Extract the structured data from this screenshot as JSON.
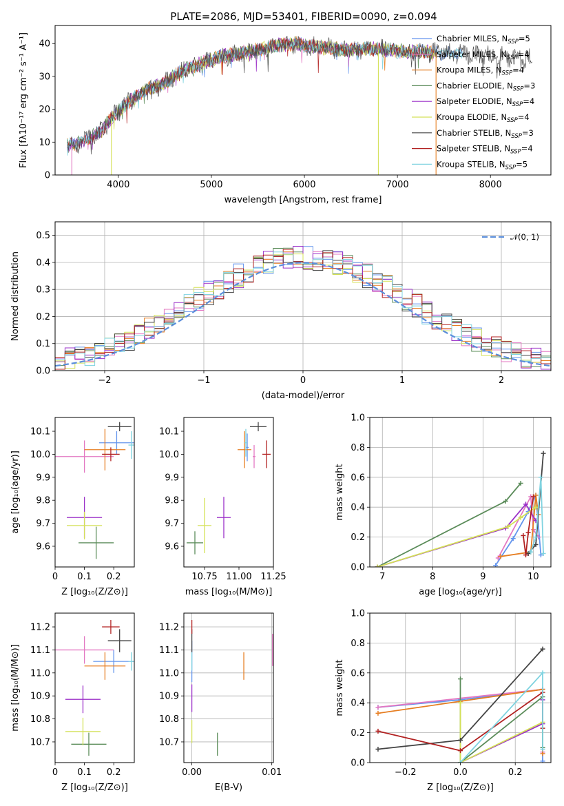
{
  "figure": {
    "title": "PLATE=2086, MJD=53401, FIBERID=0090, z=0.094"
  },
  "legend_spectrum": [
    {
      "label": "Chabrier MILES, N",
      "sub": "SSP",
      "suffix": "=5",
      "color": "#6495ED"
    },
    {
      "label": "Salpeter MILES, N",
      "sub": "SSP",
      "suffix": "=4",
      "color": "#E377C2"
    },
    {
      "label": "Kroupa MILES, N",
      "sub": "SSP",
      "suffix": "=4",
      "color": "#E67E22"
    },
    {
      "label": "Chabrier ELODIE, N",
      "sub": "SSP",
      "suffix": "=3",
      "color": "#5B8C5A"
    },
    {
      "label": "Salpeter ELODIE, N",
      "sub": "SSP",
      "suffix": "=4",
      "color": "#9B30C8"
    },
    {
      "label": "Kroupa ELODIE, N",
      "sub": "SSP",
      "suffix": "=4",
      "color": "#D4E157"
    },
    {
      "label": "Chabrier STELIB, N",
      "sub": "SSP",
      "suffix": "=3",
      "color": "#444444"
    },
    {
      "label": "Salpeter STELIB, N",
      "sub": "SSP",
      "suffix": "=4",
      "color": "#B22222"
    },
    {
      "label": "Kroupa STELIB, N",
      "sub": "SSP",
      "suffix": "=5",
      "color": "#7FD3E0"
    }
  ],
  "chart_data": [
    {
      "id": "spectrum",
      "type": "line",
      "title": "PLATE=2086, MJD=53401, FIBERID=0090, z=0.094",
      "xlabel": "wavelength [Angstrom, rest frame]",
      "ylabel": "Flux [fλ10⁻¹⁷ erg cm⁻² s⁻¹ A⁻¹]",
      "xlim": [
        3320,
        8650
      ],
      "ylim": [
        0,
        45.5
      ],
      "xticks": [
        4000,
        5000,
        6000,
        7000,
        8000
      ],
      "yticks": [
        0,
        10,
        20,
        30,
        40
      ],
      "grid": false,
      "legend": "top-right",
      "continuum": {
        "x": [
          3450,
          3600,
          3800,
          3950,
          4100,
          4300,
          4500,
          4700,
          4900,
          5100,
          5300,
          5500,
          5700,
          5900,
          6100,
          6300,
          6500,
          6700,
          6900,
          7100,
          7300,
          7500,
          7700,
          7900,
          8100,
          8300
        ],
        "y": [
          9,
          10,
          13,
          18,
          22,
          26,
          28,
          32,
          34,
          36,
          37,
          38,
          39.5,
          40,
          39,
          38.5,
          38,
          38.5,
          38,
          37.5,
          37.5,
          37,
          37,
          36.5,
          36,
          35.5
        ]
      },
      "dropouts": [
        {
          "x": 3500,
          "series": "Salpeter MILES"
        },
        {
          "x": 3925,
          "series": "Kroupa ELODIE"
        },
        {
          "x": 6795,
          "series": "Kroupa ELODIE"
        },
        {
          "x": 7415,
          "series": "Kroupa MILES"
        }
      ]
    },
    {
      "id": "residuals",
      "type": "histogram",
      "xlabel": "(data-model)/error",
      "ylabel": "Normed distribution",
      "xlim": [
        -2.5,
        2.5
      ],
      "ylim": [
        0,
        0.55
      ],
      "xticks": [
        -2,
        -1,
        0,
        1,
        2
      ],
      "yticks": [
        0.0,
        0.1,
        0.2,
        0.3,
        0.4,
        0.5
      ],
      "grid": true,
      "legend": "top-right",
      "reference_curve": {
        "label": "𝒩(0, 1)",
        "mean": 0,
        "sigma": 1,
        "color": "#5B8EDB"
      },
      "bin_width": 0.1,
      "bins_from": -2.5,
      "bins_to": 2.5
    },
    {
      "id": "age-vs-Z",
      "type": "errorbar",
      "xlabel": "Z [log₁₀(Z/Z⊙)]",
      "ylabel": "age  [log₁₀(age/yr)]",
      "xlim": [
        0.0,
        0.27
      ],
      "ylim": [
        9.51,
        10.16
      ],
      "xticks": [
        0.0,
        0.1,
        0.2
      ],
      "yticks": [
        9.6,
        9.7,
        9.8,
        9.9,
        10.0,
        10.1
      ],
      "grid": false,
      "points": [
        {
          "x": 0.21,
          "y": 10.05,
          "xerr": 0.06,
          "yerr": 0.05,
          "color": "#6495ED"
        },
        {
          "x": 0.1,
          "y": 9.99,
          "xerr": 0.1,
          "yerr": 0.07,
          "color": "#E377C2"
        },
        {
          "x": 0.17,
          "y": 10.02,
          "xerr": 0.07,
          "yerr": 0.09,
          "color": "#E67E22"
        },
        {
          "x": 0.14,
          "y": 9.615,
          "xerr": 0.06,
          "yerr": 0.07,
          "color": "#5B8C5A"
        },
        {
          "x": 0.1,
          "y": 9.725,
          "xerr": 0.06,
          "yerr": 0.09,
          "color": "#9B30C8"
        },
        {
          "x": 0.1,
          "y": 9.69,
          "xerr": 0.06,
          "yerr": 0.06,
          "color": "#D4E157"
        },
        {
          "x": 0.22,
          "y": 10.12,
          "xerr": 0.04,
          "yerr": 0.02,
          "color": "#444444"
        },
        {
          "x": 0.19,
          "y": 10.0,
          "xerr": 0.03,
          "yerr": 0.03,
          "color": "#B22222"
        },
        {
          "x": 0.26,
          "y": 10.04,
          "xerr": 0.01,
          "yerr": 0.06,
          "color": "#7FD3E0"
        }
      ]
    },
    {
      "id": "age-vs-mass",
      "type": "errorbar",
      "xlabel": "mass [log₁₀(M/M⊙)]",
      "ylabel": "",
      "xlim": [
        10.6,
        11.25
      ],
      "ylim": [
        9.51,
        10.16
      ],
      "xticks": [
        10.75,
        11.0,
        11.25
      ],
      "xticklabels": [
        "10.75",
        "11.00",
        "11.25"
      ],
      "yticks": [
        9.6,
        9.7,
        9.8,
        9.9,
        10.0,
        10.1
      ],
      "grid": false,
      "points": [
        {
          "x": 11.06,
          "y": 10.03,
          "xerr": 0.01,
          "yerr": 0.06,
          "color": "#6495ED"
        },
        {
          "x": 11.11,
          "y": 9.99,
          "xerr": 0.01,
          "yerr": 0.05,
          "color": "#E377C2"
        },
        {
          "x": 11.04,
          "y": 10.02,
          "xerr": 0.05,
          "yerr": 0.08,
          "color": "#E67E22"
        },
        {
          "x": 10.68,
          "y": 9.615,
          "xerr": 0.06,
          "yerr": 0.05,
          "color": "#5B8C5A"
        },
        {
          "x": 10.89,
          "y": 9.725,
          "xerr": 0.05,
          "yerr": 0.09,
          "color": "#9B30C8"
        },
        {
          "x": 10.75,
          "y": 9.69,
          "xerr": 0.05,
          "yerr": 0.12,
          "color": "#D4E157"
        },
        {
          "x": 11.14,
          "y": 10.12,
          "xerr": 0.06,
          "yerr": 0.02,
          "color": "#444444"
        },
        {
          "x": 11.2,
          "y": 10.0,
          "xerr": 0.03,
          "yerr": 0.06,
          "color": "#B22222"
        },
        {
          "x": 11.05,
          "y": 10.05,
          "xerr": 0.01,
          "yerr": 0.06,
          "color": "#7FD3E0"
        }
      ]
    },
    {
      "id": "massweight-vs-age",
      "type": "line",
      "xlabel": "age  [log₁₀(age/yr)]",
      "ylabel": "mass weight",
      "xlim": [
        6.75,
        10.35
      ],
      "ylim": [
        0.0,
        1.0
      ],
      "xticks": [
        7,
        8,
        9,
        10
      ],
      "yticks": [
        0.0,
        0.2,
        0.4,
        0.6,
        0.8,
        1.0
      ],
      "grid": true,
      "series": [
        {
          "color": "#6495ED",
          "x": [
            9.25,
            9.6,
            9.9,
            10.05,
            10.15
          ],
          "y": [
            0.01,
            0.19,
            0.37,
            0.48,
            0.08
          ]
        },
        {
          "color": "#E377C2",
          "x": [
            9.3,
            9.95,
            10.0,
            10.1
          ],
          "y": [
            0.06,
            0.47,
            0.25,
            0.2
          ]
        },
        {
          "color": "#E67E22",
          "x": [
            9.35,
            9.95,
            10.05,
            10.1
          ],
          "y": [
            0.07,
            0.1,
            0.48,
            0.35
          ]
        },
        {
          "color": "#5B8C5A",
          "x": [
            6.9,
            9.45,
            9.75
          ],
          "y": [
            0.0,
            0.44,
            0.56
          ]
        },
        {
          "color": "#9B30C8",
          "x": [
            6.9,
            9.45,
            9.85,
            10.05
          ],
          "y": [
            0.0,
            0.26,
            0.42,
            0.31
          ]
        },
        {
          "color": "#D4E157",
          "x": [
            6.9,
            9.5,
            9.75,
            10.05
          ],
          "y": [
            0.0,
            0.27,
            0.33,
            0.4
          ]
        },
        {
          "color": "#444444",
          "x": [
            9.9,
            10.05,
            10.2
          ],
          "y": [
            0.09,
            0.15,
            0.76
          ]
        },
        {
          "color": "#B22222",
          "x": [
            9.8,
            9.85,
            9.9,
            10.0
          ],
          "y": [
            0.21,
            0.08,
            0.23,
            0.47
          ]
        },
        {
          "color": "#7FD3E0",
          "x": [
            9.95,
            10.05,
            10.15,
            10.2
          ],
          "y": [
            0.1,
            0.2,
            0.6,
            0.09
          ]
        }
      ]
    },
    {
      "id": "mass-vs-Z",
      "type": "errorbar",
      "xlabel": "Z [log₁₀(Z/Z⊙)]",
      "ylabel": "mass [log₁₀(M/M⊙)]",
      "xlim": [
        0.0,
        0.27
      ],
      "ylim": [
        10.61,
        11.26
      ],
      "xticks": [
        0.0,
        0.1,
        0.2
      ],
      "yticks": [
        10.7,
        10.8,
        10.9,
        11.0,
        11.1,
        11.2
      ],
      "grid": false,
      "points": [
        {
          "x": 0.2,
          "y": 11.05,
          "xerr": 0.07,
          "yerr": 0.05,
          "color": "#6495ED"
        },
        {
          "x": 0.1,
          "y": 11.1,
          "xerr": 0.1,
          "yerr": 0.06,
          "color": "#E377C2"
        },
        {
          "x": 0.17,
          "y": 11.03,
          "xerr": 0.07,
          "yerr": 0.06,
          "color": "#E67E22"
        },
        {
          "x": 0.115,
          "y": 10.69,
          "xerr": 0.06,
          "yerr": 0.05,
          "color": "#5B8C5A"
        },
        {
          "x": 0.095,
          "y": 10.885,
          "xerr": 0.06,
          "yerr": 0.06,
          "color": "#9B30C8"
        },
        {
          "x": 0.095,
          "y": 10.745,
          "xerr": 0.06,
          "yerr": 0.06,
          "color": "#D4E157"
        },
        {
          "x": 0.22,
          "y": 11.14,
          "xerr": 0.04,
          "yerr": 0.05,
          "color": "#444444"
        },
        {
          "x": 0.19,
          "y": 11.2,
          "xerr": 0.03,
          "yerr": 0.03,
          "color": "#B22222"
        },
        {
          "x": 0.26,
          "y": 11.05,
          "xerr": 0.01,
          "yerr": 0.04,
          "color": "#7FD3E0"
        }
      ]
    },
    {
      "id": "mass-vs-ebv",
      "type": "errorbar",
      "xlabel": "E(B-V)",
      "ylabel": "",
      "xlim": [
        -0.001,
        0.0102
      ],
      "ylim": [
        10.61,
        11.26
      ],
      "xticks": [
        0.0,
        0.01
      ],
      "xticklabels": [
        "0.00",
        "0.01"
      ],
      "yticks": [
        10.7,
        10.8,
        10.9,
        11.0,
        11.1,
        11.2
      ],
      "grid": true,
      "points": [
        {
          "x": 0.0,
          "y": 11.05,
          "xerr": 0,
          "yerr": 0.09,
          "color": "#6495ED"
        },
        {
          "x": 0.0101,
          "y": 11.1,
          "xerr": 0,
          "yerr": 0.07,
          "color": "#E377C2"
        },
        {
          "x": 0.0065,
          "y": 11.03,
          "xerr": 0,
          "yerr": 0.06,
          "color": "#E67E22"
        },
        {
          "x": 0.0032,
          "y": 10.69,
          "xerr": 0,
          "yerr": 0.05,
          "color": "#5B8C5A"
        },
        {
          "x": 0.0,
          "y": 10.89,
          "xerr": 0,
          "yerr": 0.06,
          "color": "#9B30C8"
        },
        {
          "x": 0.0,
          "y": 10.745,
          "xerr": 0,
          "yerr": 0.05,
          "color": "#D4E157"
        },
        {
          "x": 0.0,
          "y": 11.14,
          "xerr": 0,
          "yerr": 0.05,
          "color": "#444444"
        },
        {
          "x": 0.0,
          "y": 11.2,
          "xerr": 0,
          "yerr": 0.03,
          "color": "#B22222"
        },
        {
          "x": 0.0,
          "y": 11.05,
          "xerr": 0,
          "yerr": 0.04,
          "color": "#7FD3E0"
        }
      ]
    },
    {
      "id": "massweight-vs-Z",
      "type": "line",
      "xlabel": "Z [log₁₀(Z/Z⊙)]",
      "ylabel": "mass weight",
      "xlim": [
        -0.33,
        0.33
      ],
      "ylim": [
        0.0,
        1.0
      ],
      "xticks": [
        -0.2,
        0.0,
        0.2
      ],
      "xticklabels": [
        "−0.2",
        "0.0",
        "0.2"
      ],
      "yticks": [
        0.0,
        0.2,
        0.4,
        0.6,
        0.8,
        1.0
      ],
      "grid": true,
      "series": [
        {
          "color": "#6495ED",
          "x": [
            -0.3,
            0.0,
            0.3,
            0.3
          ],
          "y": [
            0.37,
            0.42,
            0.49,
            0.01
          ]
        },
        {
          "color": "#E377C2",
          "x": [
            -0.3,
            0.0,
            0.3,
            0.3
          ],
          "y": [
            0.37,
            0.43,
            0.49,
            0.07
          ]
        },
        {
          "color": "#E67E22",
          "x": [
            -0.3,
            0.0,
            0.3,
            0.3
          ],
          "y": [
            0.33,
            0.41,
            0.49,
            0.06
          ]
        },
        {
          "color": "#5B8C5A",
          "x": [
            0.0,
            0.0,
            0.3,
            0.3
          ],
          "y": [
            0.56,
            0.0,
            0.44,
            0.1
          ]
        },
        {
          "color": "#9B30C8",
          "x": [
            0.0,
            0.3,
            0.3
          ],
          "y": [
            0.0,
            0.26,
            0.42
          ]
        },
        {
          "color": "#D4E157",
          "x": [
            0.0,
            0.0,
            0.3
          ],
          "y": [
            0.4,
            0.0,
            0.27
          ]
        },
        {
          "color": "#444444",
          "x": [
            -0.3,
            0.0,
            0.3
          ],
          "y": [
            0.09,
            0.15,
            0.76
          ]
        },
        {
          "color": "#B22222",
          "x": [
            -0.3,
            0.0,
            0.3,
            0.3
          ],
          "y": [
            0.21,
            0.08,
            0.47,
            0.23
          ]
        },
        {
          "color": "#7FD3E0",
          "x": [
            0.0,
            0.3,
            0.3
          ],
          "y": [
            0.0,
            0.6,
            0.09
          ]
        }
      ]
    }
  ]
}
